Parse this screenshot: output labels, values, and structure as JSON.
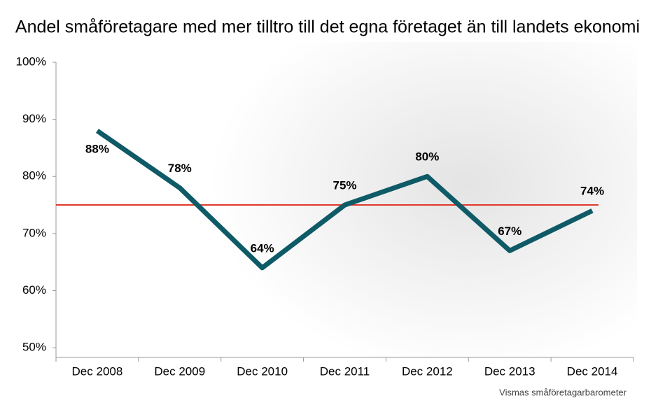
{
  "chart_data": {
    "type": "line",
    "title": "Andel småföretagare med mer tilltro till det egna företaget än till landets ekonomi",
    "source": "Vismas småföretagarbarometer",
    "categories": [
      "Dec 2008",
      "Dec 2009",
      "Dec 2010",
      "Dec 2011",
      "Dec 2012",
      "Dec 2013",
      "Dec 2014"
    ],
    "values": [
      88,
      78,
      64,
      75,
      80,
      67,
      74
    ],
    "value_labels": [
      "88%",
      "78%",
      "64%",
      "75%",
      "80%",
      "67%",
      "74%"
    ],
    "color": "#0e5a66",
    "reference_line": {
      "value": 75,
      "color": "#e0392b"
    },
    "ylim": [
      48.3,
      100
    ],
    "yticks": [
      {
        "value": 50,
        "label": "50%"
      },
      {
        "value": 60,
        "label": "60%"
      },
      {
        "value": 70,
        "label": "70%"
      },
      {
        "value": 80,
        "label": "80%"
      },
      {
        "value": 90,
        "label": "90%"
      },
      {
        "value": 100,
        "label": "100%"
      }
    ],
    "grid": false
  }
}
